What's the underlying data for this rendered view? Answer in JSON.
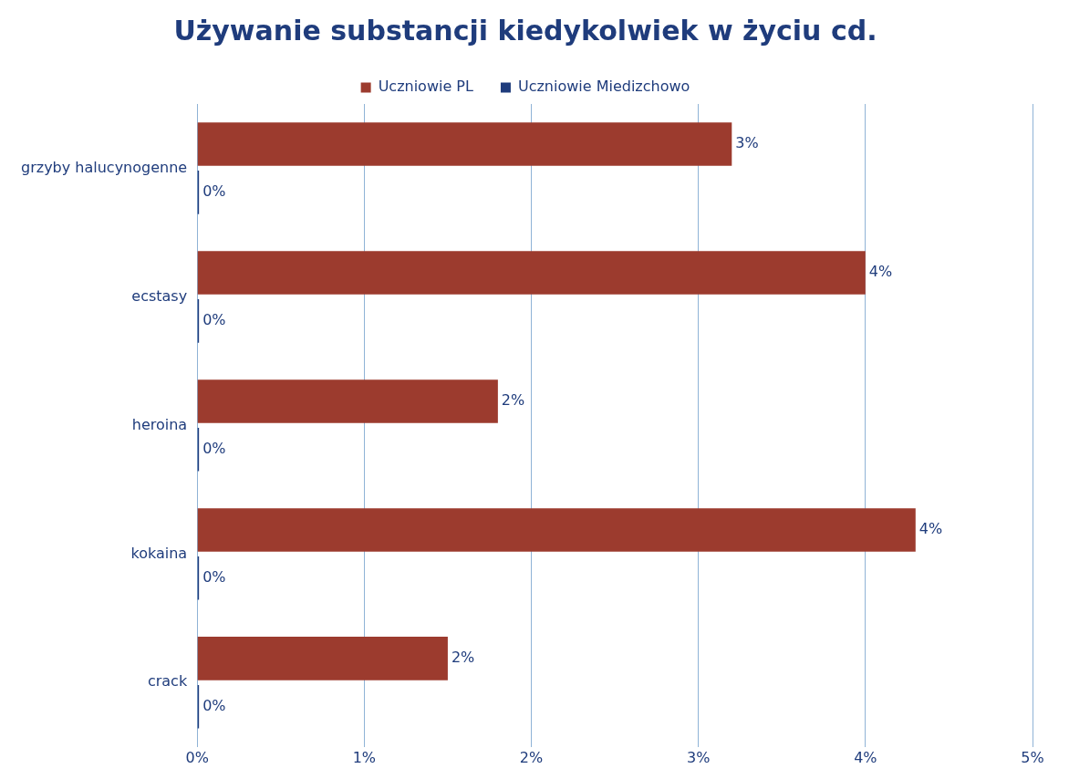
{
  "chart_data": {
    "type": "bar",
    "orientation": "horizontal",
    "title": "Używanie substancji kiedykolwiek w życiu cd.",
    "categories": [
      "grzyby halucynogenne",
      "ecstasy",
      "heroina",
      "kokaina",
      "crack"
    ],
    "series": [
      {
        "name": "Uczniowie PL",
        "color": "#9c3b2e",
        "values": [
          3.2,
          4.0,
          1.8,
          4.3,
          1.5
        ],
        "value_labels": [
          "3%",
          "4%",
          "2%",
          "4%",
          "2%"
        ]
      },
      {
        "name": "Uczniowie Miedizchowo",
        "color": "#1f3c7c",
        "values": [
          0,
          0,
          0,
          0,
          0
        ],
        "value_labels": [
          "0%",
          "0%",
          "0%",
          "0%",
          "0%"
        ]
      }
    ],
    "xlim": [
      0,
      5
    ],
    "xticks": [
      {
        "value": 0,
        "label": "0%"
      },
      {
        "value": 1,
        "label": "1%"
      },
      {
        "value": 2,
        "label": "2%"
      },
      {
        "value": 3,
        "label": "3%"
      },
      {
        "value": 4,
        "label": "4%"
      },
      {
        "value": 5,
        "label": "5%"
      }
    ],
    "grid": "x",
    "legend": "top"
  }
}
